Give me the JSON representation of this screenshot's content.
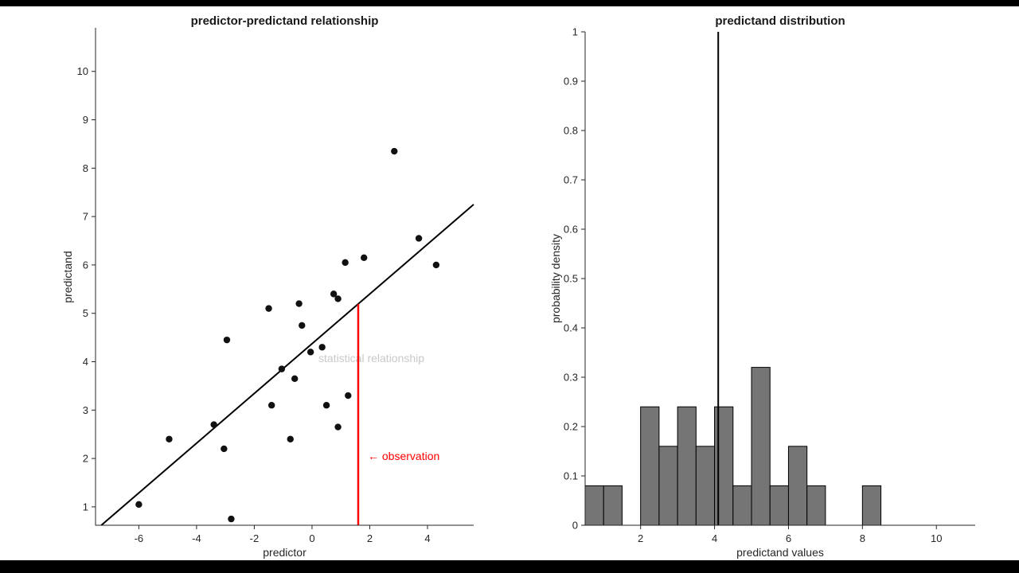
{
  "page": {
    "background": "#000000",
    "canvas_background": "#ffffff"
  },
  "chart_data": [
    {
      "type": "scatter",
      "title": "predictor-predictand relationship",
      "xlabel": "predictor",
      "ylabel": "predictand",
      "xlim": [
        -7.5,
        5.6
      ],
      "ylim": [
        0.62,
        10.9
      ],
      "xticks": [
        -6,
        -4,
        -2,
        0,
        2,
        4
      ],
      "yticks": [
        1,
        2,
        3,
        4,
        5,
        6,
        7,
        8,
        9,
        10
      ],
      "grid": false,
      "legend": "none",
      "point_color": "#111111",
      "points": [
        [
          -6.0,
          1.05
        ],
        [
          -4.95,
          2.4
        ],
        [
          -3.4,
          2.7
        ],
        [
          -2.95,
          4.45
        ],
        [
          -3.05,
          2.2
        ],
        [
          -2.8,
          0.75
        ],
        [
          -1.5,
          5.1
        ],
        [
          -1.4,
          3.1
        ],
        [
          -1.05,
          3.85
        ],
        [
          -0.75,
          2.4
        ],
        [
          -0.6,
          3.65
        ],
        [
          -0.45,
          5.2
        ],
        [
          -0.35,
          4.75
        ],
        [
          -0.05,
          4.2
        ],
        [
          0.35,
          4.3
        ],
        [
          0.5,
          3.1
        ],
        [
          0.75,
          5.4
        ],
        [
          0.9,
          5.3
        ],
        [
          0.9,
          2.65
        ],
        [
          1.15,
          6.05
        ],
        [
          1.25,
          3.3
        ],
        [
          1.8,
          6.15
        ],
        [
          2.85,
          8.35
        ],
        [
          3.7,
          6.55
        ],
        [
          4.3,
          6.0
        ]
      ],
      "fit_line": {
        "x1": -7.3,
        "y1": 0.62,
        "x2": 5.6,
        "y2": 7.25,
        "color": "#000000",
        "label": "statistical relationship",
        "label_color": "#c9c9c9"
      },
      "observation": {
        "x": 1.6,
        "y_top": 5.19,
        "color": "#ff0000",
        "label": "← observation"
      }
    },
    {
      "type": "bar",
      "title": "predictand distribution",
      "xlabel": "predictand values",
      "ylabel": "probability density",
      "xlim": [
        0.5,
        11.05
      ],
      "ylim": [
        0,
        1
      ],
      "xticks": [
        2,
        4,
        6,
        8,
        10
      ],
      "yticks": [
        0,
        0.1,
        0.2,
        0.3,
        0.4,
        0.5,
        0.6,
        0.7,
        0.8,
        0.9,
        1
      ],
      "grid": false,
      "bin_width": 0.5,
      "bar_fill": "#757575",
      "bar_edge": "#000000",
      "bars": [
        {
          "x": 0.5,
          "h": 0.08
        },
        {
          "x": 1.0,
          "h": 0.08
        },
        {
          "x": 2.0,
          "h": 0.24
        },
        {
          "x": 2.5,
          "h": 0.16
        },
        {
          "x": 3.0,
          "h": 0.24
        },
        {
          "x": 3.5,
          "h": 0.16
        },
        {
          "x": 4.0,
          "h": 0.24
        },
        {
          "x": 4.5,
          "h": 0.08
        },
        {
          "x": 5.0,
          "h": 0.32
        },
        {
          "x": 5.5,
          "h": 0.08
        },
        {
          "x": 6.0,
          "h": 0.16
        },
        {
          "x": 6.5,
          "h": 0.08
        },
        {
          "x": 8.0,
          "h": 0.08
        }
      ],
      "mean_line": {
        "x": 4.1,
        "color": "#000000"
      }
    }
  ]
}
